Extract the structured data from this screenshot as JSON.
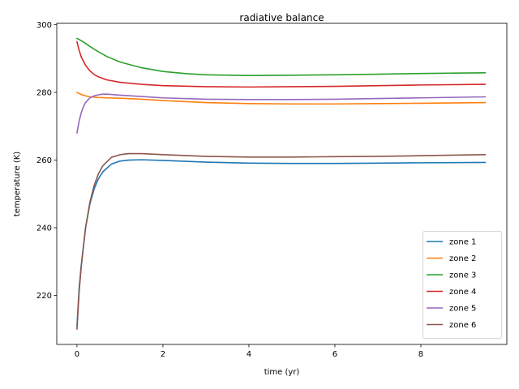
{
  "chart_data": {
    "type": "line",
    "title": "radiative balance",
    "xlabel": "time (yr)",
    "ylabel": "temperature (K)",
    "xlim": [
      -0.47,
      10.0
    ],
    "ylim": [
      205.5,
      300.5
    ],
    "xticks": [
      0,
      2,
      4,
      6,
      8
    ],
    "yticks": [
      220,
      240,
      260,
      280,
      300
    ],
    "grid": false,
    "legend_position": "lower right",
    "series": [
      {
        "name": "zone 1",
        "color": "#1f77b4",
        "x": [
          0,
          0.05,
          0.1,
          0.2,
          0.3,
          0.4,
          0.5,
          0.6,
          0.8,
          1.0,
          1.2,
          1.5,
          2.0,
          3.0,
          4.0,
          5.0,
          6.0,
          7.0,
          8.0,
          9.5
        ],
        "y": [
          211,
          222,
          229,
          240,
          247,
          251.5,
          254.5,
          256.5,
          258.8,
          259.7,
          260.0,
          260.1,
          259.9,
          259.4,
          259.1,
          259.0,
          259.0,
          259.1,
          259.2,
          259.3
        ]
      },
      {
        "name": "zone 2",
        "color": "#ff7f0e",
        "x": [
          0,
          0.1,
          0.2,
          0.3,
          0.5,
          0.7,
          1.0,
          1.5,
          2.0,
          3.0,
          4.0,
          5.0,
          6.0,
          7.0,
          8.0,
          9.5
        ],
        "y": [
          280,
          279.4,
          279.0,
          278.7,
          278.5,
          278.4,
          278.3,
          278.0,
          277.6,
          277.0,
          276.7,
          276.6,
          276.6,
          276.7,
          276.8,
          277.0
        ]
      },
      {
        "name": "zone 3",
        "color": "#2ca02c",
        "x": [
          0,
          0.1,
          0.2,
          0.3,
          0.5,
          0.7,
          1.0,
          1.5,
          2.0,
          2.5,
          3.0,
          4.0,
          5.0,
          6.0,
          7.0,
          8.0,
          9.5
        ],
        "y": [
          296,
          295.3,
          294.5,
          293.6,
          292.0,
          290.6,
          289.0,
          287.3,
          286.2,
          285.6,
          285.2,
          285.0,
          285.1,
          285.2,
          285.4,
          285.6,
          285.8
        ]
      },
      {
        "name": "zone 4",
        "color": "#d62728",
        "x": [
          0,
          0.05,
          0.1,
          0.2,
          0.3,
          0.4,
          0.5,
          0.7,
          1.0,
          1.5,
          2.0,
          3.0,
          4.0,
          5.0,
          6.0,
          7.0,
          8.0,
          9.5
        ],
        "y": [
          295,
          292.5,
          290.5,
          288.0,
          286.4,
          285.3,
          284.6,
          283.7,
          283.0,
          282.4,
          282.0,
          281.7,
          281.6,
          281.7,
          281.8,
          282.0,
          282.2,
          282.4
        ]
      },
      {
        "name": "zone 5",
        "color": "#9467bd",
        "x": [
          0,
          0.05,
          0.1,
          0.15,
          0.2,
          0.3,
          0.4,
          0.5,
          0.6,
          0.7,
          0.8,
          1.0,
          1.5,
          2.0,
          3.0,
          4.0,
          5.0,
          6.0,
          7.0,
          8.0,
          9.5
        ],
        "y": [
          268,
          271.5,
          274.0,
          275.8,
          277.0,
          278.4,
          279.0,
          279.3,
          279.5,
          279.5,
          279.4,
          279.2,
          278.8,
          278.4,
          278.0,
          277.9,
          277.9,
          278.0,
          278.2,
          278.4,
          278.7
        ]
      },
      {
        "name": "zone 6",
        "color": "#8c564b",
        "x": [
          0,
          0.05,
          0.1,
          0.2,
          0.3,
          0.4,
          0.5,
          0.6,
          0.8,
          1.0,
          1.2,
          1.5,
          2.0,
          3.0,
          4.0,
          5.0,
          6.0,
          7.0,
          8.0,
          9.5
        ],
        "y": [
          210,
          221,
          228.5,
          240,
          247.5,
          252.5,
          256,
          258.3,
          260.8,
          261.6,
          261.9,
          261.9,
          261.6,
          261.1,
          260.9,
          260.9,
          261.0,
          261.1,
          261.3,
          261.6
        ]
      }
    ]
  }
}
